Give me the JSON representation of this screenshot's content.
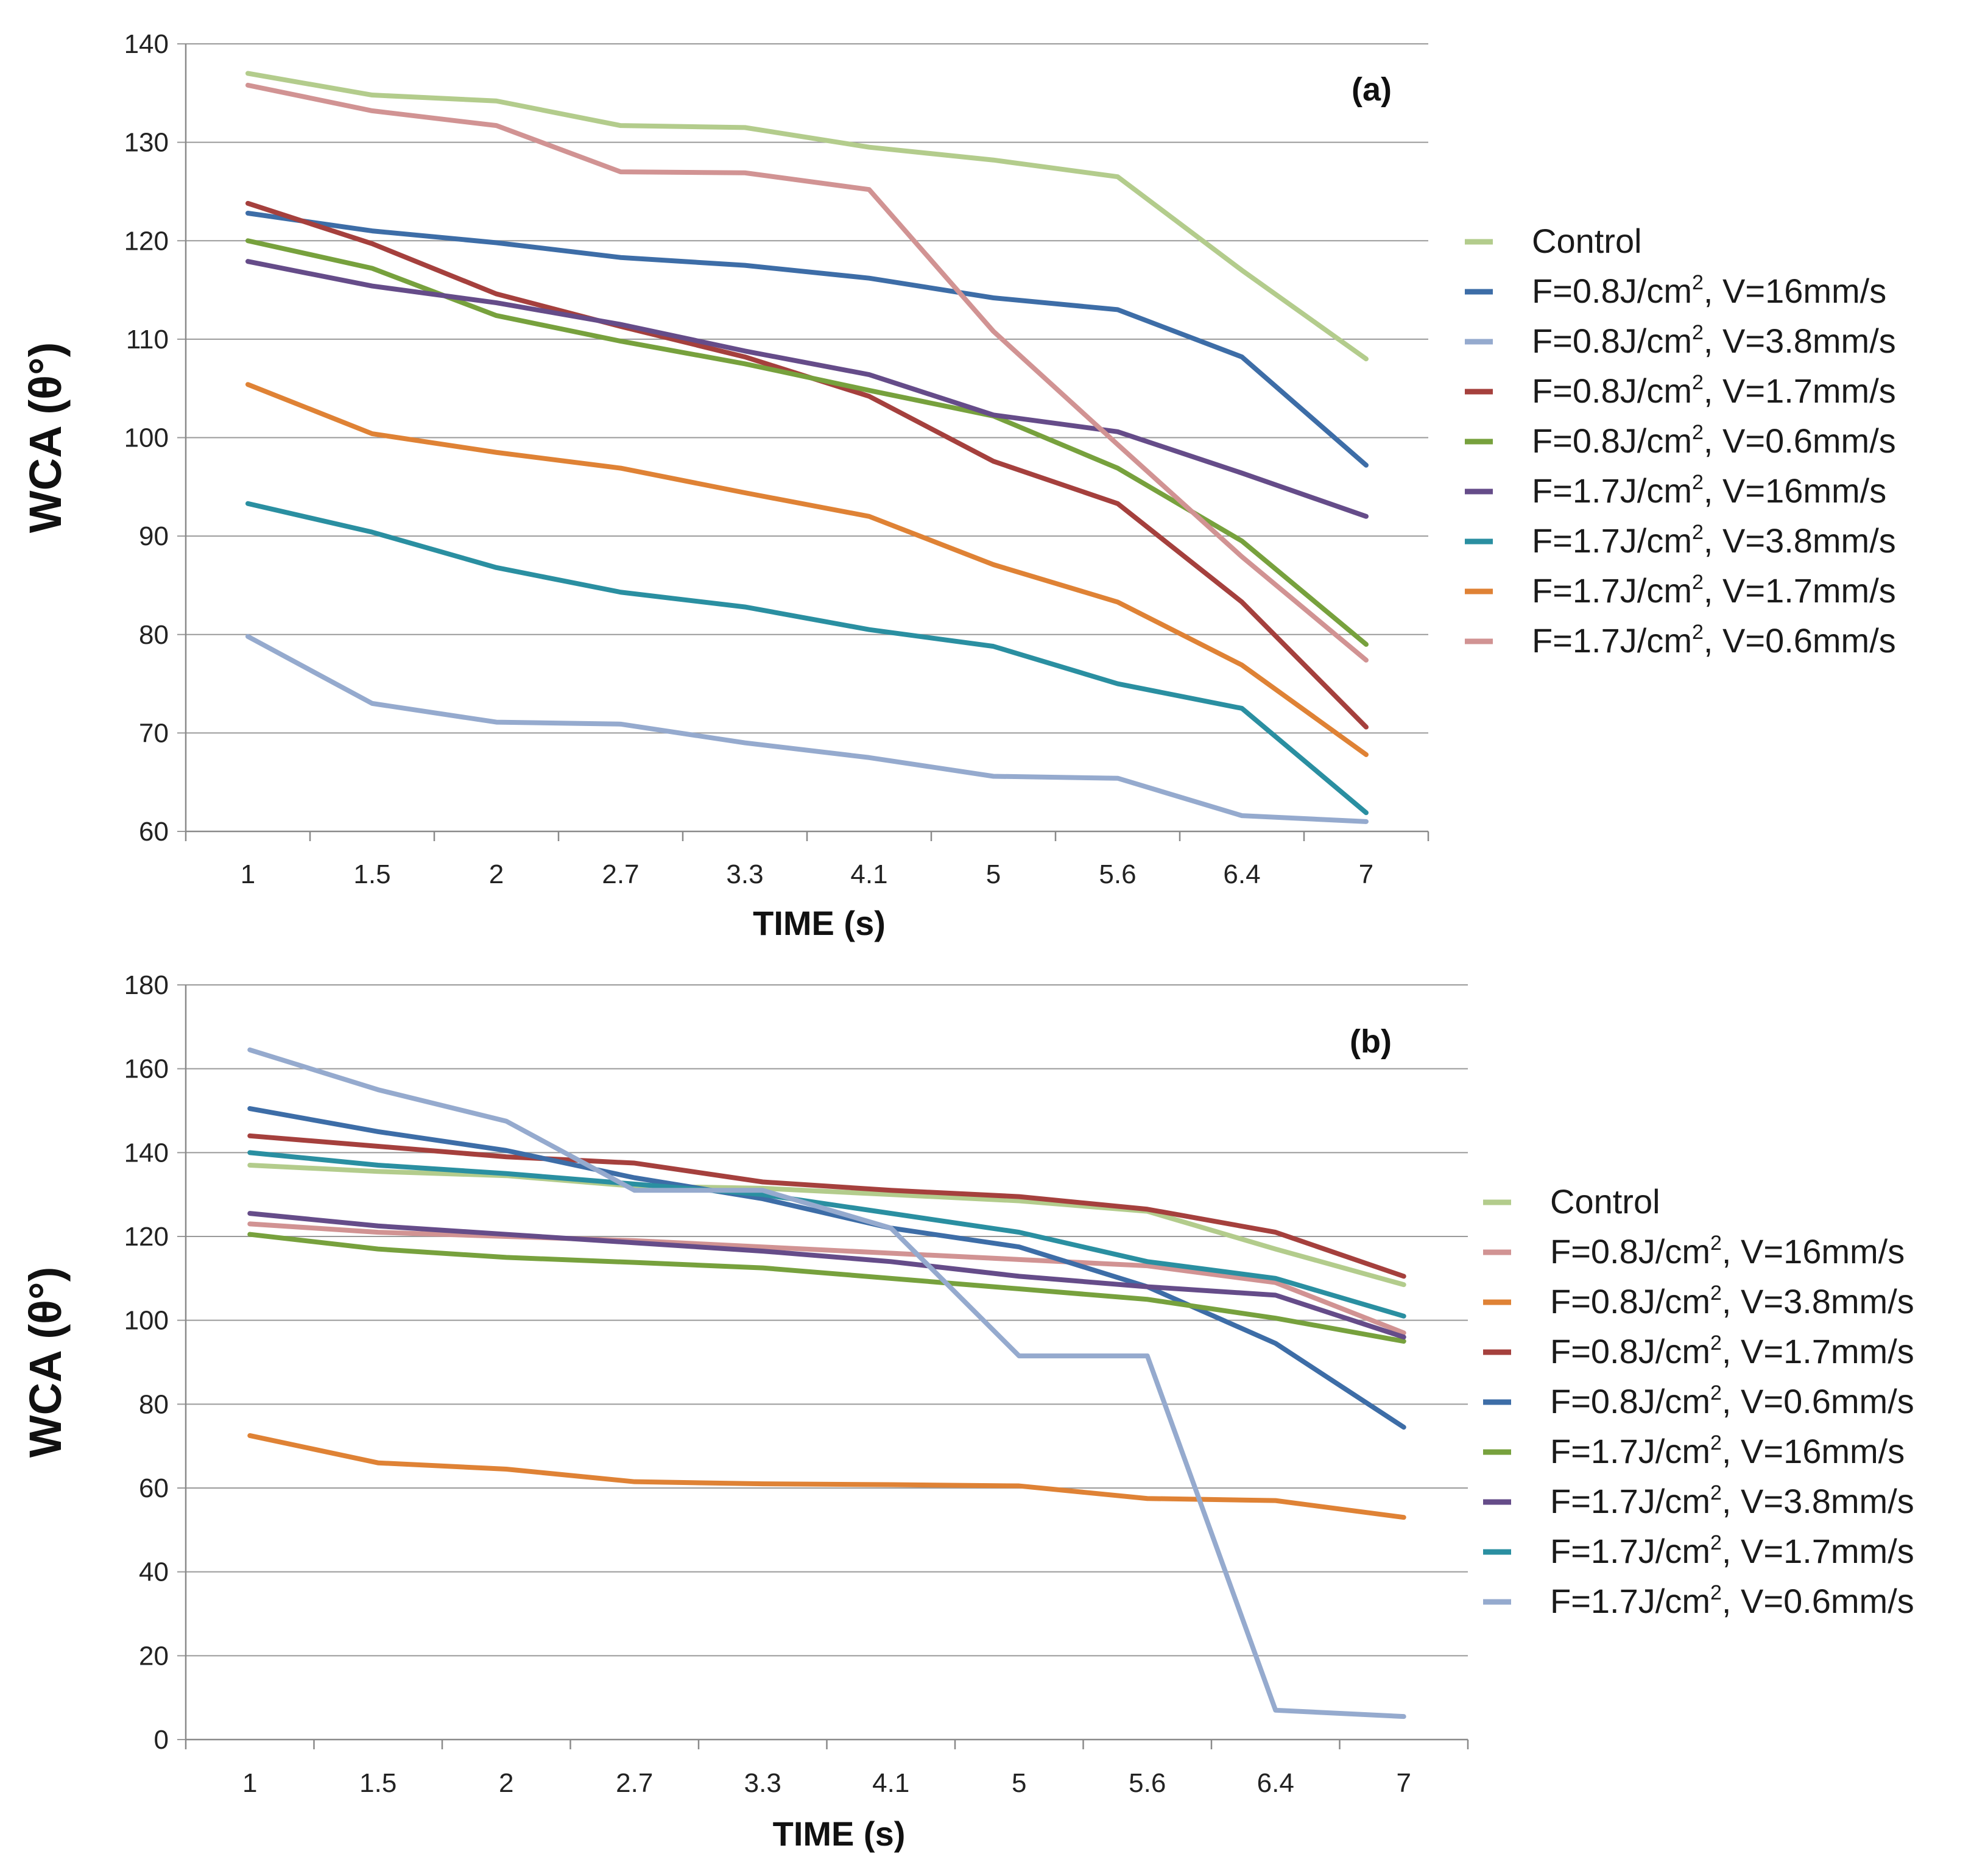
{
  "chart_data": [
    {
      "type": "line",
      "panel_label": "(a)",
      "xlabel": "TIME (s)",
      "ylabel": "WCA (θ°)",
      "categories": [
        "1",
        "1.5",
        "2",
        "2.7",
        "3.3",
        "4.1",
        "5",
        "5.6",
        "6.4",
        "7"
      ],
      "ylim": [
        60,
        140
      ],
      "yticks": [
        60,
        70,
        80,
        90,
        100,
        110,
        120,
        130,
        140
      ],
      "grid": true,
      "legend_position": "right",
      "series": [
        {
          "name": "Control",
          "color": "#B3CC8C",
          "values": [
            137,
            134.8,
            134.2,
            131.7,
            131.5,
            129.5,
            128.2,
            126.5,
            117,
            108
          ]
        },
        {
          "name": "F=0.8J/cm2, V=16mm/s",
          "color": "#3D6DA7",
          "values": [
            122.8,
            121,
            119.8,
            118.3,
            117.5,
            116.2,
            114.2,
            113,
            108.2,
            97.2
          ]
        },
        {
          "name": "F=0.8J/cm2, V=3.8mm/s",
          "color": "#95AACE",
          "values": [
            79.8,
            73,
            71.1,
            70.9,
            69,
            67.5,
            65.6,
            65.4,
            61.6,
            61
          ]
        },
        {
          "name": "F=0.8J/cm2, V=1.7mm/s",
          "color": "#A5403D",
          "values": [
            123.8,
            119.7,
            114.6,
            111.3,
            108.2,
            104.2,
            97.6,
            93.3,
            83.3,
            70.6
          ]
        },
        {
          "name": "F=0.8J/cm2, V=0.6mm/s",
          "color": "#77A13D",
          "values": [
            120,
            117.2,
            112.4,
            109.8,
            107.5,
            104.8,
            102.2,
            96.9,
            89.5,
            79
          ]
        },
        {
          "name": "F=1.7J/cm2, V=16mm/s",
          "color": "#654C89",
          "values": [
            117.9,
            115.4,
            113.7,
            111.5,
            108.8,
            106.4,
            102.3,
            100.6,
            96.4,
            92
          ]
        },
        {
          "name": "F=1.7J/cm2, V=3.8mm/s",
          "color": "#2A8FA1",
          "values": [
            93.3,
            90.4,
            86.8,
            84.3,
            82.8,
            80.5,
            78.8,
            75,
            72.5,
            61.9
          ]
        },
        {
          "name": "F=1.7J/cm2, V=1.7mm/s",
          "color": "#DF8235",
          "values": [
            105.4,
            100.4,
            98.5,
            96.9,
            94.4,
            92,
            87.1,
            83.3,
            76.9,
            67.8
          ]
        },
        {
          "name": "F=1.7J/cm2, V=0.6mm/s",
          "color": "#D19393",
          "values": [
            135.8,
            133.2,
            131.7,
            127,
            126.9,
            125.2,
            110.8,
            99.3,
            87.9,
            77.4
          ]
        }
      ]
    },
    {
      "type": "line",
      "panel_label": "(b)",
      "xlabel": "TIME (s)",
      "ylabel": "WCA (θ°)",
      "categories": [
        "1",
        "1.5",
        "2",
        "2.7",
        "3.3",
        "4.1",
        "5",
        "5.6",
        "6.4",
        "7"
      ],
      "ylim": [
        0,
        180
      ],
      "yticks": [
        0,
        20,
        40,
        60,
        80,
        100,
        120,
        140,
        160,
        180
      ],
      "grid": true,
      "legend_position": "right",
      "series": [
        {
          "name": "Control",
          "color": "#B3CC8C",
          "values": [
            137,
            135.5,
            134.5,
            132,
            131.5,
            130,
            128.5,
            126,
            117,
            108.5
          ]
        },
        {
          "name": "F=0.8J/cm2, V=16mm/s",
          "color": "#D19393",
          "values": [
            123,
            121,
            120,
            119,
            117.5,
            116,
            114.5,
            113,
            109,
            97
          ]
        },
        {
          "name": "F=0.8J/cm2, V=3.8mm/s",
          "color": "#DF8235",
          "values": [
            72.5,
            66,
            64.5,
            61.5,
            61,
            60.8,
            60.5,
            57.5,
            57,
            53
          ]
        },
        {
          "name": "F=0.8J/cm2, V=1.7mm/s",
          "color": "#A5403D",
          "values": [
            144,
            141.5,
            139,
            137.5,
            133,
            131,
            129.5,
            126.5,
            121,
            110.5
          ]
        },
        {
          "name": "F=0.8J/cm2, V=0.6mm/s",
          "color": "#3D6DA7",
          "values": [
            150.5,
            145,
            140.5,
            134,
            129,
            122,
            117.5,
            108,
            94.5,
            74.5
          ]
        },
        {
          "name": "F=1.7J/cm2, V=16mm/s",
          "color": "#77A13D",
          "values": [
            120.5,
            117,
            115,
            113.8,
            112.5,
            110,
            107.5,
            105,
            100.5,
            95
          ]
        },
        {
          "name": "F=1.7J/cm2, V=3.8mm/s",
          "color": "#654C89",
          "values": [
            125.5,
            122.5,
            120.5,
            118.5,
            116.5,
            114,
            110.5,
            108,
            106,
            96
          ]
        },
        {
          "name": "F=1.7J/cm2, V=1.7mm/s",
          "color": "#2A8FA1",
          "values": [
            140,
            137,
            135,
            132.5,
            130,
            125.5,
            121,
            114,
            110,
            101
          ]
        },
        {
          "name": "F=1.7J/cm2, V=0.6mm/s",
          "color": "#95AACE",
          "values": [
            164.5,
            155,
            147.5,
            131,
            131,
            122,
            91.5,
            91.5,
            7,
            5.5
          ]
        }
      ]
    }
  ]
}
